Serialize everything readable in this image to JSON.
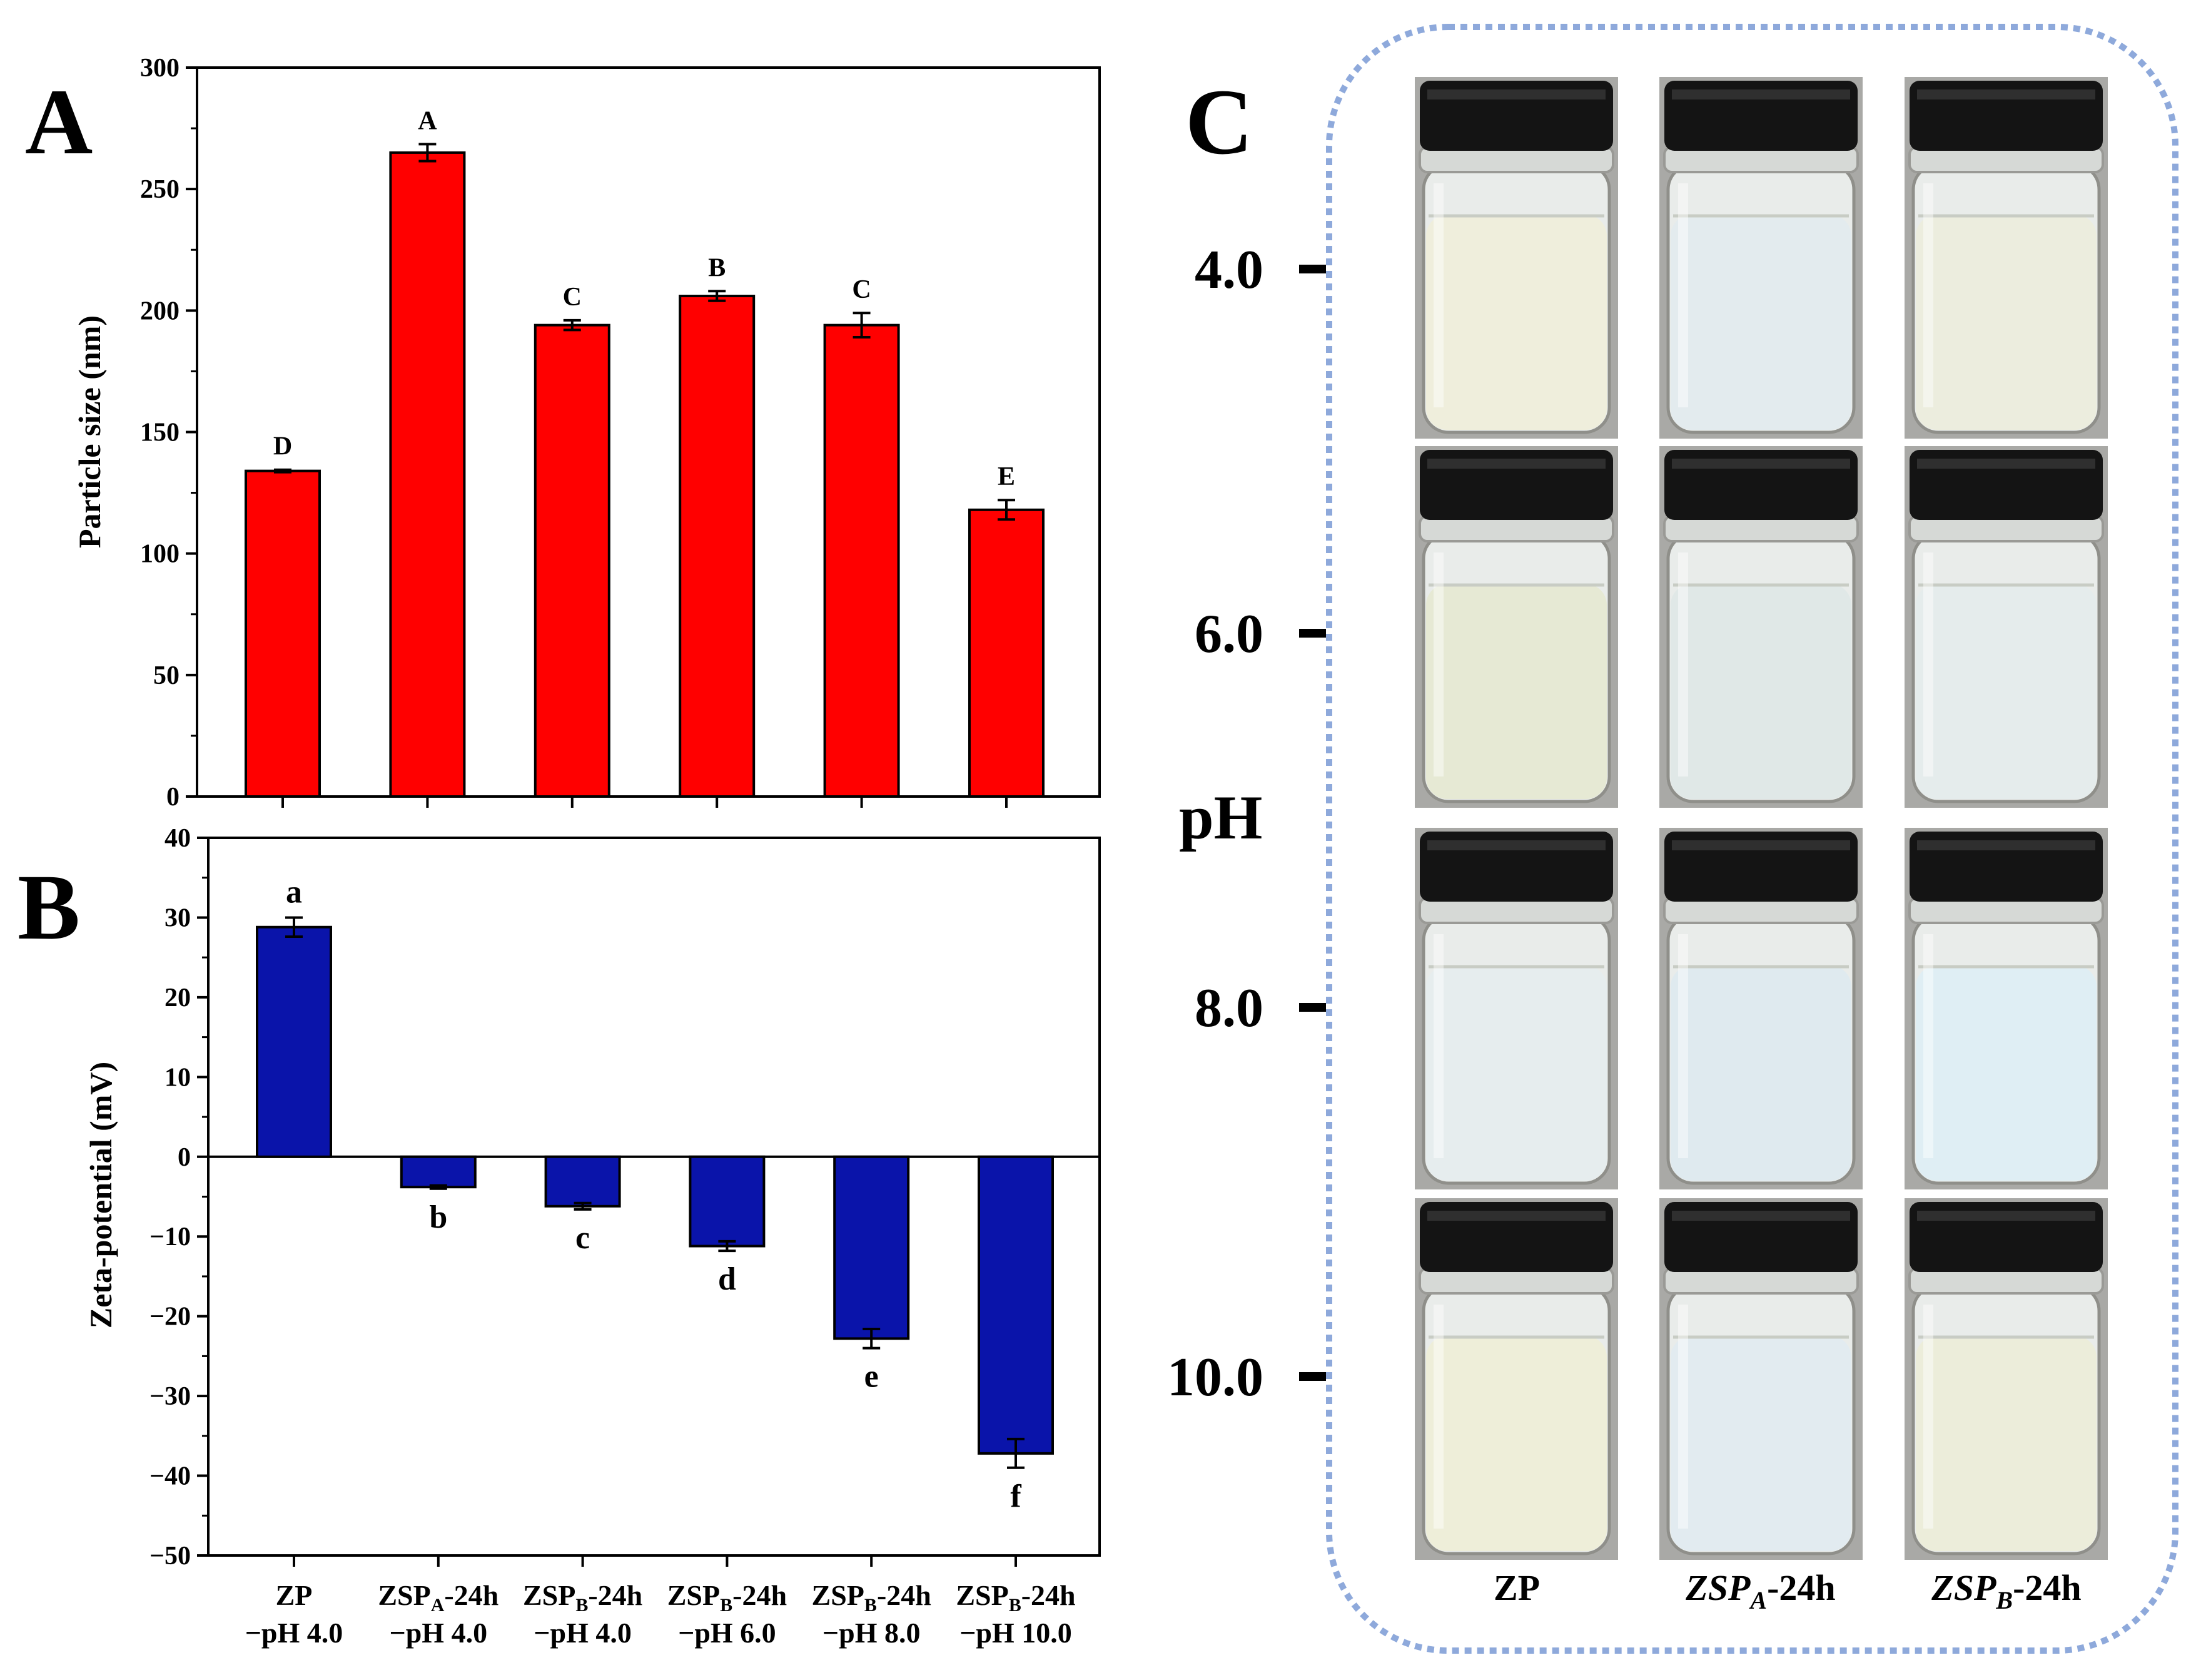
{
  "panels": {
    "a": {
      "letter": "A"
    },
    "b": {
      "letter": "B"
    },
    "c": {
      "letter": "C"
    }
  },
  "chart_data": [
    {
      "type": "bar",
      "panel": "A",
      "ylabel": "Particle size (nm)",
      "ylim": [
        0,
        300
      ],
      "yticks": [
        "0",
        "50",
        "100",
        "150",
        "200",
        "250",
        "300"
      ],
      "bar_color": "#ff0000",
      "categories": [
        "ZP −pH 4.0",
        "ZSPA-24h −pH 4.0",
        "ZSPB-24h −pH 4.0",
        "ZSPB-24h −pH 6.0",
        "ZSPB-24h −pH 8.0",
        "ZSPB-24h −pH 10.0"
      ],
      "values": [
        134,
        265,
        194,
        206,
        194,
        118
      ],
      "errors": [
        0.5,
        3.5,
        2,
        2,
        5,
        4
      ],
      "letters": [
        "D",
        "A",
        "C",
        "B",
        "C",
        "E"
      ]
    },
    {
      "type": "bar",
      "panel": "B",
      "ylabel": "Zeta-potential (mV)",
      "ylim": [
        -50,
        40
      ],
      "yticks": [
        "−50",
        "−40",
        "−30",
        "−20",
        "−10",
        "0",
        "10",
        "20",
        "30",
        "40"
      ],
      "bar_color": "#0a14aa",
      "categories": [
        "ZP −pH 4.0",
        "ZSPA-24h −pH 4.0",
        "ZSPB-24h −pH 4.0",
        "ZSPB-24h −pH 6.0",
        "ZSPB-24h −pH 8.0",
        "ZSPB-24h −pH 10.0"
      ],
      "values": [
        28.8,
        -3.8,
        -6.2,
        -11.2,
        -22.8,
        -37.2
      ],
      "errors": [
        1.2,
        0.2,
        0.4,
        0.6,
        1.2,
        1.8
      ],
      "letters": [
        "a",
        "b",
        "c",
        "d",
        "e",
        "f"
      ],
      "xtick_labels": [
        {
          "name": "ZP",
          "sub": "",
          "suffix": "",
          "line2": "−pH 4.0"
        },
        {
          "name": "ZSP",
          "sub": "A",
          "suffix": "-24h",
          "line2": "−pH 4.0"
        },
        {
          "name": "ZSP",
          "sub": "B",
          "suffix": "-24h",
          "line2": "−pH 4.0"
        },
        {
          "name": "ZSP",
          "sub": "B",
          "suffix": "-24h",
          "line2": "−pH 6.0"
        },
        {
          "name": "ZSP",
          "sub": "B",
          "suffix": "-24h",
          "line2": "−pH 8.0"
        },
        {
          "name": "ZSP",
          "sub": "B",
          "suffix": "-24h",
          "line2": "−pH 10.0"
        }
      ]
    }
  ],
  "photos": {
    "ph_label": "pH",
    "ph_rows": [
      "4.0",
      "6.0",
      "8.0",
      "10.0"
    ],
    "columns": [
      {
        "name": "ZP",
        "sub": "",
        "suffix": ""
      },
      {
        "name": "ZSP",
        "sub": "A",
        "suffix": "-24h"
      },
      {
        "name": "ZSP",
        "sub": "B",
        "suffix": "-24h"
      }
    ],
    "frame_color": "#8ea9db",
    "cap_color": "#141414",
    "liquid_colors": [
      [
        "#efeedc",
        "#e3ebee",
        "#ecedde"
      ],
      [
        "#e6e9d4",
        "#e0e8e7",
        "#e5ecec"
      ],
      [
        "#e6edee",
        "#dfeaef",
        "#dfeef4"
      ],
      [
        "#eeeed9",
        "#e2ebf0",
        "#ecedda"
      ]
    ]
  }
}
